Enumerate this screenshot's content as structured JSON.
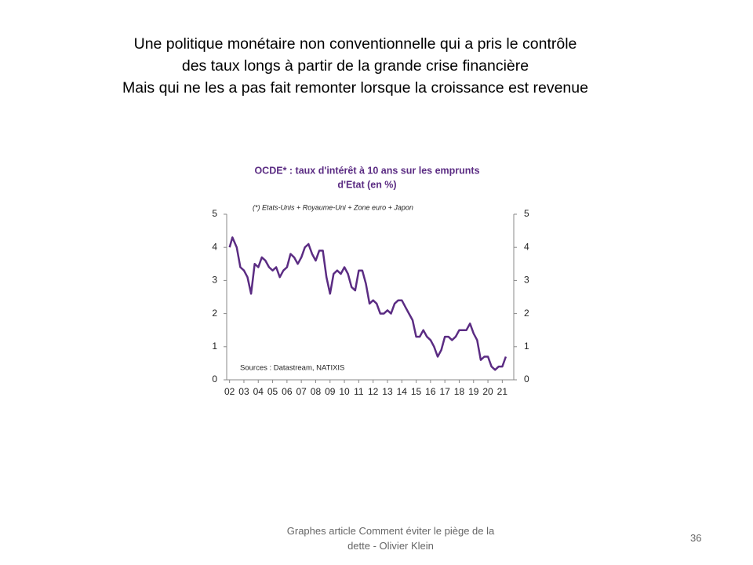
{
  "header": {
    "lines": [
      "Une politique monétaire non conventionnelle qui a pris le contrôle",
      "des taux longs à partir de la grande crise financière",
      "Mais qui ne les a pas fait remonter lorsque la croissance est revenue"
    ]
  },
  "footer": {
    "lines": [
      "Graphes article Comment  éviter le piège de la",
      "dette - Olivier Klein"
    ],
    "page_number": "36"
  },
  "chart_data": {
    "type": "line",
    "title": [
      "OCDE* : taux d'intérêt à 10 ans sur les emprunts",
      "d'Etat (en %)"
    ],
    "subtitle": "(*) Etats-Unis + Royaume-Uni + Zone euro + Japon",
    "source": "Sources : Datastream, NATIXIS",
    "x": [
      2002.0,
      2002.2,
      2002.5,
      2002.75,
      2003.0,
      2003.25,
      2003.5,
      2003.75,
      2004.0,
      2004.25,
      2004.5,
      2004.75,
      2005.0,
      2005.25,
      2005.5,
      2005.75,
      2006.0,
      2006.25,
      2006.5,
      2006.75,
      2007.0,
      2007.25,
      2007.5,
      2007.75,
      2008.0,
      2008.25,
      2008.5,
      2008.75,
      2009.0,
      2009.25,
      2009.5,
      2009.75,
      2010.0,
      2010.25,
      2010.5,
      2010.75,
      2011.0,
      2011.25,
      2011.5,
      2011.75,
      2012.0,
      2012.25,
      2012.5,
      2012.75,
      2013.0,
      2013.25,
      2013.5,
      2013.75,
      2014.0,
      2014.25,
      2014.5,
      2014.75,
      2015.0,
      2015.25,
      2015.5,
      2015.75,
      2016.0,
      2016.25,
      2016.5,
      2016.75,
      2017.0,
      2017.25,
      2017.5,
      2017.75,
      2018.0,
      2018.25,
      2018.5,
      2018.75,
      2019.0,
      2019.25,
      2019.5,
      2019.75,
      2020.0,
      2020.25,
      2020.5,
      2020.75,
      2021.0,
      2021.25
    ],
    "series": [
      {
        "name": "OCDE",
        "color": "#5b2c83",
        "values": [
          4.0,
          4.3,
          4.0,
          3.4,
          3.3,
          3.1,
          2.6,
          3.5,
          3.4,
          3.7,
          3.6,
          3.4,
          3.3,
          3.4,
          3.1,
          3.3,
          3.4,
          3.8,
          3.7,
          3.5,
          3.7,
          4.0,
          4.1,
          3.8,
          3.6,
          3.9,
          3.9,
          3.1,
          2.6,
          3.2,
          3.3,
          3.2,
          3.4,
          3.2,
          2.8,
          2.7,
          3.3,
          3.3,
          2.9,
          2.3,
          2.4,
          2.3,
          2.0,
          2.0,
          2.1,
          2.0,
          2.3,
          2.4,
          2.4,
          2.2,
          2.0,
          1.8,
          1.3,
          1.3,
          1.5,
          1.3,
          1.2,
          1.0,
          0.7,
          0.9,
          1.3,
          1.3,
          1.2,
          1.3,
          1.5,
          1.5,
          1.5,
          1.7,
          1.4,
          1.2,
          0.6,
          0.7,
          0.7,
          0.4,
          0.3,
          0.4,
          0.4,
          0.7
        ]
      }
    ],
    "xlim": [
      2001.8,
      2021.8
    ],
    "xticks": [
      {
        "value": 2002,
        "label": "02"
      },
      {
        "value": 2003,
        "label": "03"
      },
      {
        "value": 2004,
        "label": "04"
      },
      {
        "value": 2005,
        "label": "05"
      },
      {
        "value": 2006,
        "label": "06"
      },
      {
        "value": 2007,
        "label": "07"
      },
      {
        "value": 2008,
        "label": "08"
      },
      {
        "value": 2009,
        "label": "09"
      },
      {
        "value": 2010,
        "label": "10"
      },
      {
        "value": 2011,
        "label": "11"
      },
      {
        "value": 2012,
        "label": "12"
      },
      {
        "value": 2013,
        "label": "13"
      },
      {
        "value": 2014,
        "label": "14"
      },
      {
        "value": 2015,
        "label": "15"
      },
      {
        "value": 2016,
        "label": "16"
      },
      {
        "value": 2017,
        "label": "17"
      },
      {
        "value": 2018,
        "label": "18"
      },
      {
        "value": 2019,
        "label": "19"
      },
      {
        "value": 2020,
        "label": "20"
      },
      {
        "value": 2021,
        "label": "21"
      }
    ],
    "ylim": [
      0,
      5
    ],
    "yticks": [
      0,
      1,
      2,
      3,
      4,
      5
    ],
    "y2lim": [
      0,
      5
    ],
    "y2ticks": [
      0,
      1,
      2,
      3,
      4,
      5
    ],
    "grid": false
  }
}
